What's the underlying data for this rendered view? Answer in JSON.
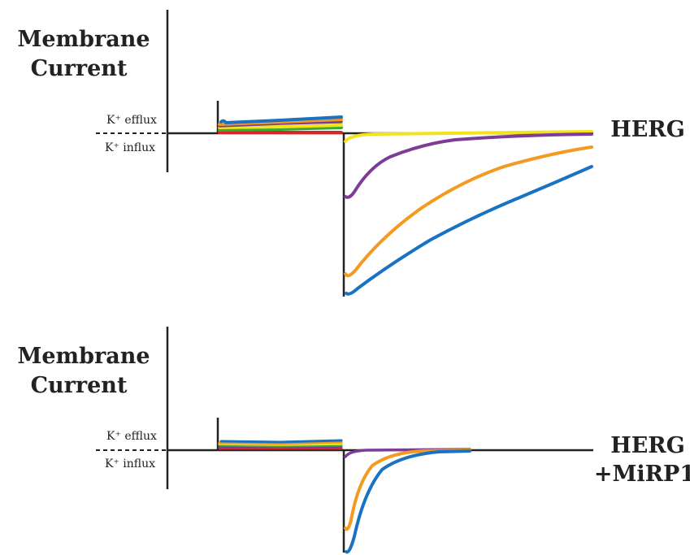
{
  "chart_data": [
    {
      "type": "line",
      "ylabel_line1": "Membrane",
      "ylabel_line2": "Current",
      "efflux_label": "K⁺ efflux",
      "influx_label": "K⁺ influx",
      "condition_line1": "HERG",
      "condition_line2": "",
      "colors": [
        "#1a73c2",
        "#f39a1f",
        "#7d3c98",
        "#f4e21b",
        "#3aaa35",
        "#d62728"
      ]
    },
    {
      "type": "line",
      "ylabel_line1": "Membrane",
      "ylabel_line2": "Current",
      "efflux_label": "K⁺ efflux",
      "influx_label": "K⁺ influx",
      "condition_line1": "HERG",
      "condition_line2": "+MiRP1",
      "colors": [
        "#1a73c2",
        "#f39a1f",
        "#7d3c98",
        "#f4e21b",
        "#3aaa35",
        "#d62728"
      ]
    }
  ]
}
